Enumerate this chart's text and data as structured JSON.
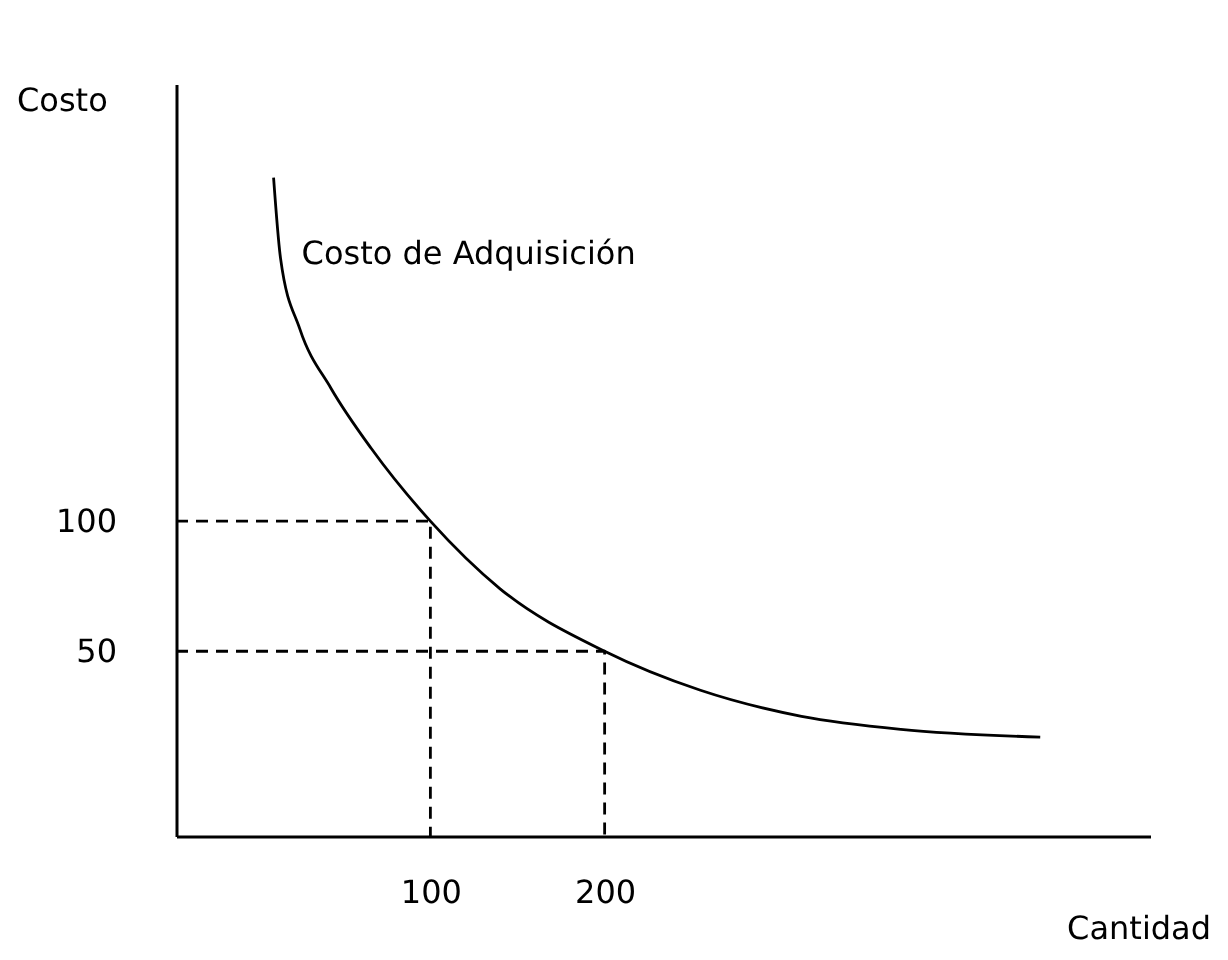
{
  "chart_data": {
    "type": "line",
    "xlabel": "Cantidad",
    "ylabel": "Costo",
    "xlim": [
      -46,
      513
    ],
    "ylim": [
      -21,
      268
    ],
    "xticks": [
      100,
      200
    ],
    "yticks": [
      50,
      100
    ],
    "marker": "none",
    "series": [
      {
        "name": "Costo de Adquisición",
        "color": "#000000",
        "x": [
          10,
          14,
          25,
          43,
          66,
          100,
          140,
          200,
          255,
          313,
          370,
          450
        ],
        "values": [
          232,
          201,
          174,
          151,
          128,
          100,
          74,
          50,
          35,
          25,
          20,
          17
        ]
      },
      {
        "color": "#000000",
        "line_style": "dashed",
        "x": [
          -46,
          100,
          100
        ],
        "values": [
          100,
          100,
          -21
        ]
      },
      {
        "color": "#000000",
        "line_style": "dashed",
        "x": [
          -46,
          200,
          200
        ],
        "values": [
          50,
          50,
          -21
        ]
      }
    ]
  }
}
